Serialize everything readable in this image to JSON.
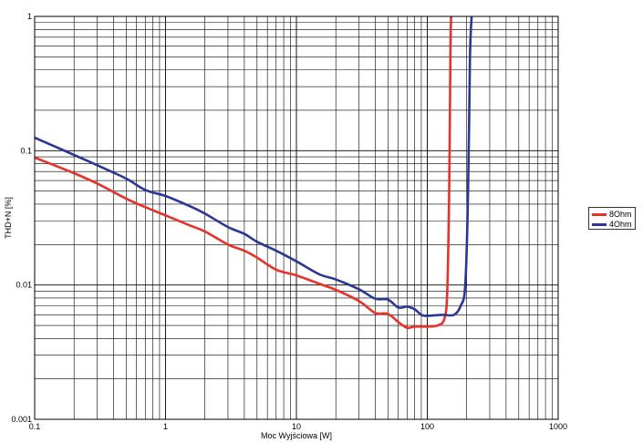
{
  "chart_data": {
    "type": "line",
    "xlabel": "Moc Wyjściowa [W]",
    "ylabel": "THD+N [%]",
    "xscale": "log",
    "yscale": "log",
    "xlim": [
      0.1,
      1000
    ],
    "ylim": [
      0.001,
      1
    ],
    "grid": true,
    "legend_position": "right",
    "x_tick_labels": [
      "0.1",
      "1",
      "10",
      "100",
      "1000"
    ],
    "y_tick_labels": [
      "0.001",
      "0.01",
      "0.1",
      "1"
    ],
    "x_ticks": [
      0.1,
      1,
      10,
      100,
      1000
    ],
    "y_ticks": [
      0.001,
      0.01,
      0.1,
      1
    ],
    "series": [
      {
        "name": "8Ohm",
        "color": "#e8312a",
        "x": [
          0.1,
          0.2,
          0.3,
          0.5,
          0.7,
          1,
          1.5,
          2,
          3,
          4,
          5,
          7,
          10,
          15,
          20,
          30,
          40,
          50,
          60,
          70,
          80,
          100,
          120,
          135,
          142,
          147,
          150,
          152
        ],
        "y": [
          0.089,
          0.068,
          0.057,
          0.044,
          0.038,
          0.033,
          0.028,
          0.025,
          0.02,
          0.018,
          0.016,
          0.013,
          0.0118,
          0.0102,
          0.0092,
          0.0076,
          0.0062,
          0.0061,
          0.0053,
          0.0048,
          0.0049,
          0.0049,
          0.005,
          0.0056,
          0.009,
          0.05,
          0.5,
          1.0
        ]
      },
      {
        "name": "4Ohm",
        "color": "#2a3797",
        "x": [
          0.1,
          0.2,
          0.3,
          0.5,
          0.7,
          1,
          1.5,
          2,
          3,
          4,
          5,
          7,
          10,
          15,
          20,
          30,
          40,
          50,
          60,
          70,
          80,
          90,
          100,
          130,
          160,
          180,
          195,
          205,
          212,
          218
        ],
        "y": [
          0.125,
          0.093,
          0.078,
          0.062,
          0.051,
          0.046,
          0.039,
          0.034,
          0.027,
          0.024,
          0.021,
          0.018,
          0.015,
          0.012,
          0.011,
          0.0093,
          0.0079,
          0.0078,
          0.0068,
          0.0069,
          0.0066,
          0.006,
          0.0059,
          0.006,
          0.006,
          0.007,
          0.01,
          0.05,
          0.5,
          1.0
        ]
      }
    ]
  }
}
